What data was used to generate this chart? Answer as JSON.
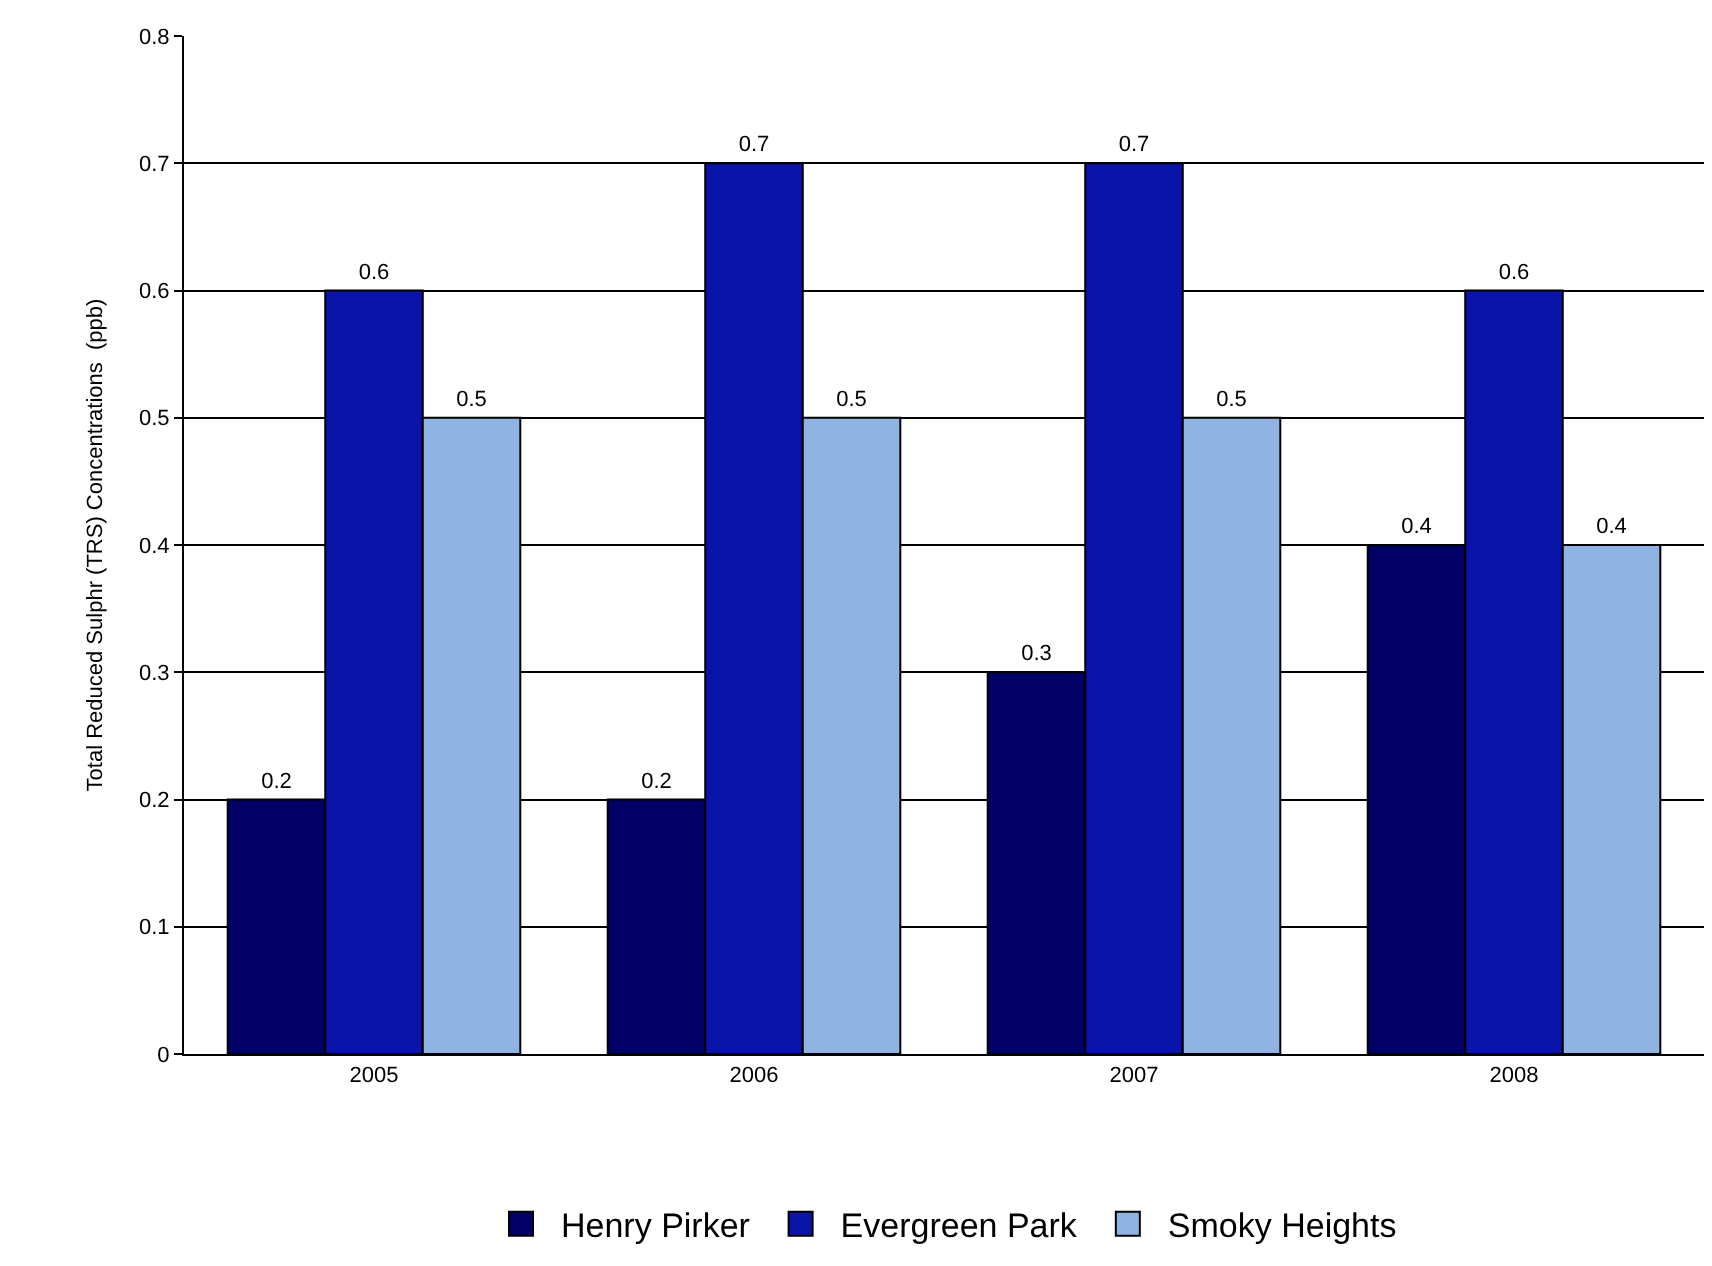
{
  "chart_data": {
    "type": "bar",
    "ylabel": "Total Reduced Sulphr (TRS) Concentrations  (ppb)",
    "categories": [
      "2005",
      "2006",
      "2007",
      "2008"
    ],
    "series": [
      {
        "name": "Henry Pirker",
        "color": "#000066",
        "values": [
          0.2,
          0.2,
          0.3,
          0.4
        ]
      },
      {
        "name": "Evergreen Park",
        "color": "#0a14a8",
        "values": [
          0.6,
          0.7,
          0.7,
          0.6
        ]
      },
      {
        "name": "Smoky Heights",
        "color": "#8fb4e3",
        "values": [
          0.5,
          0.5,
          0.5,
          0.4
        ]
      }
    ],
    "ylim": [
      0,
      0.8
    ],
    "yticks": [
      0,
      0.1,
      0.2,
      0.3,
      0.4,
      0.5,
      0.6,
      0.7,
      0.8
    ],
    "grid": "y",
    "legend": "bottom",
    "data_labels": true
  }
}
